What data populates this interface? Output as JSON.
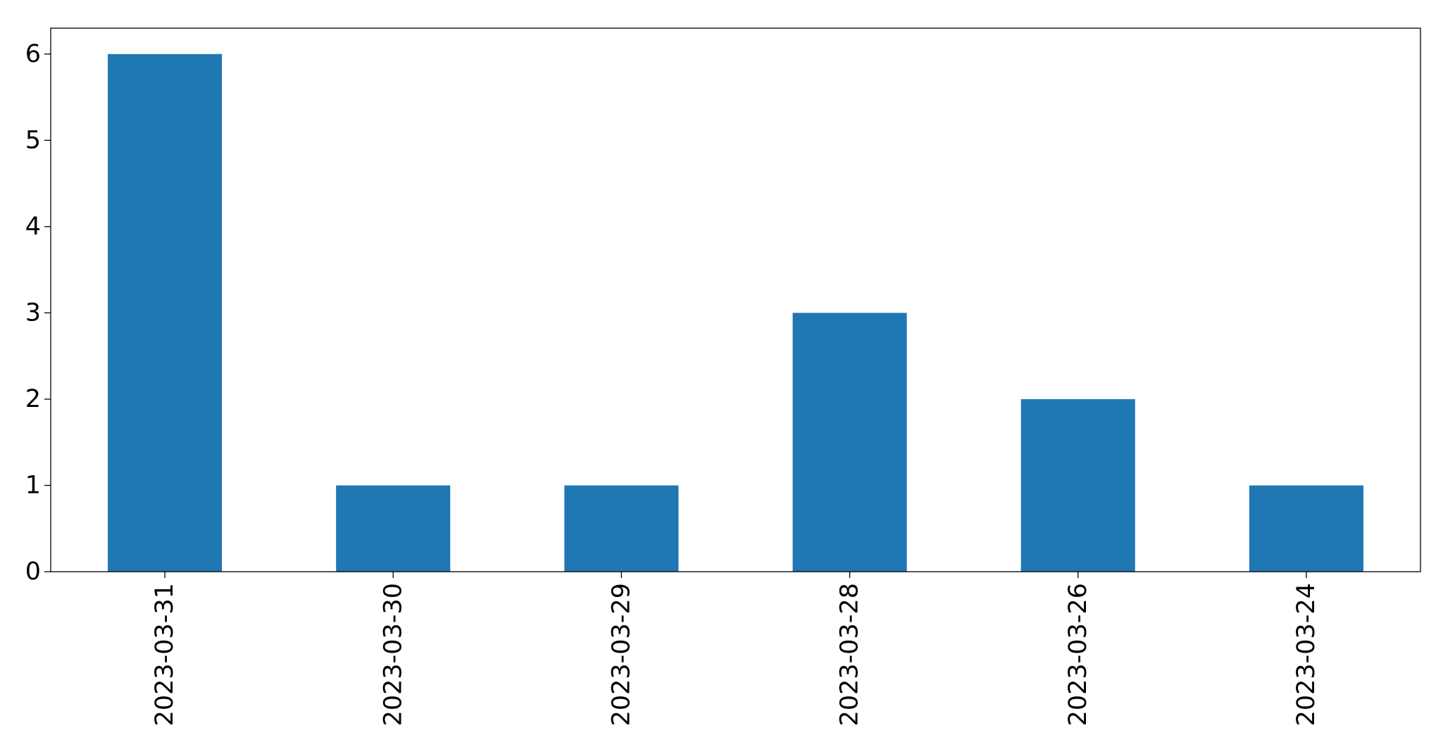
{
  "chart_data": {
    "type": "bar",
    "title": "",
    "xlabel": "",
    "ylabel": "",
    "categories": [
      "2023-03-31",
      "2023-03-30",
      "2023-03-29",
      "2023-03-28",
      "2023-03-26",
      "2023-03-24"
    ],
    "values": [
      6,
      1,
      1,
      3,
      2,
      1
    ],
    "ylim": [
      0,
      6.3
    ],
    "yticks": [
      0,
      1,
      2,
      3,
      4,
      5,
      6
    ],
    "grid": false,
    "legend": "none",
    "bar_color": "#1f77b4",
    "x_tick_rotation": "vertical"
  }
}
